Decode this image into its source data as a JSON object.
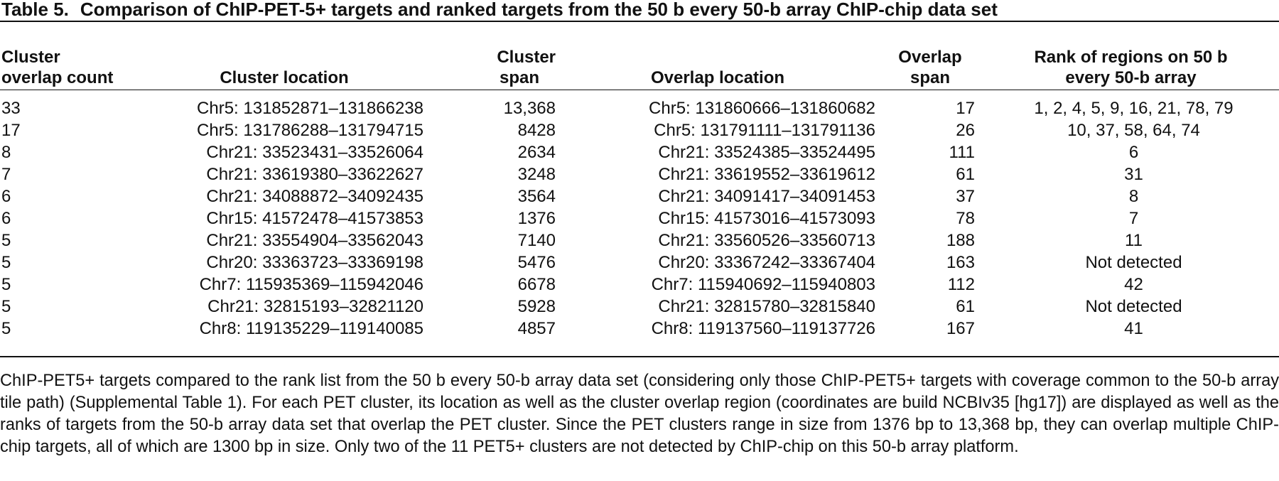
{
  "table": {
    "label": "Table 5.",
    "title": "Comparison of ChIP-PET-5+ targets and ranked targets from the 50 b every 50-b array ChIP-chip data set",
    "headers": {
      "overlap_count": [
        "Cluster",
        "overlap count"
      ],
      "cluster_location": "Cluster location",
      "cluster_span": [
        "Cluster",
        "span"
      ],
      "overlap_location": "Overlap location",
      "overlap_span": [
        "Overlap",
        "span"
      ],
      "rank": [
        "Rank of regions on 50 b",
        "every 50-b array"
      ]
    },
    "rows": [
      {
        "count": "33",
        "cluster_location": "Chr5: 131852871–131866238",
        "cluster_span": "13,368",
        "overlap_location": "Chr5: 131860666–131860682",
        "overlap_span": "17",
        "rank": "1, 2, 4, 5, 9, 16, 21, 78, 79"
      },
      {
        "count": "17",
        "cluster_location": "Chr5: 131786288–131794715",
        "cluster_span": "8428",
        "overlap_location": "Chr5: 131791111–131791136",
        "overlap_span": "26",
        "rank": "10, 37, 58, 64, 74"
      },
      {
        "count": "8",
        "cluster_location": "Chr21: 33523431–33526064",
        "cluster_span": "2634",
        "overlap_location": "Chr21: 33524385–33524495",
        "overlap_span": "111",
        "rank": "6"
      },
      {
        "count": "7",
        "cluster_location": "Chr21: 33619380–33622627",
        "cluster_span": "3248",
        "overlap_location": "Chr21: 33619552–33619612",
        "overlap_span": "61",
        "rank": "31"
      },
      {
        "count": "6",
        "cluster_location": "Chr21: 34088872–34092435",
        "cluster_span": "3564",
        "overlap_location": "Chr21: 34091417–34091453",
        "overlap_span": "37",
        "rank": "8"
      },
      {
        "count": "6",
        "cluster_location": "Chr15: 41572478–41573853",
        "cluster_span": "1376",
        "overlap_location": "Chr15: 41573016–41573093",
        "overlap_span": "78",
        "rank": "7"
      },
      {
        "count": "5",
        "cluster_location": "Chr21: 33554904–33562043",
        "cluster_span": "7140",
        "overlap_location": "Chr21: 33560526–33560713",
        "overlap_span": "188",
        "rank": "11"
      },
      {
        "count": "5",
        "cluster_location": "Chr20: 33363723–33369198",
        "cluster_span": "5476",
        "overlap_location": "Chr20: 33367242–33367404",
        "overlap_span": "163",
        "rank": "Not detected"
      },
      {
        "count": "5",
        "cluster_location": "Chr7: 115935369–115942046",
        "cluster_span": "6678",
        "overlap_location": "Chr7: 115940692–115940803",
        "overlap_span": "112",
        "rank": "42"
      },
      {
        "count": "5",
        "cluster_location": "Chr21: 32815193–32821120",
        "cluster_span": "5928",
        "overlap_location": "Chr21: 32815780–32815840",
        "overlap_span": "61",
        "rank": "Not detected"
      },
      {
        "count": "5",
        "cluster_location": "Chr8: 119135229–119140085",
        "cluster_span": "4857",
        "overlap_location": "Chr8: 119137560–119137726",
        "overlap_span": "167",
        "rank": "41"
      }
    ],
    "footnote": "ChIP-PET5+ targets compared to the rank list from the 50 b every 50-b array data set (considering only those ChIP-PET5+ targets with coverage common to the 50-b array tile path) (Supplemental Table 1). For each PET cluster, its location as well as the cluster overlap region (coordinates are build NCBIv35 [hg17]) are displayed as well as the ranks of targets from the 50-b array data set that overlap the PET cluster. Since the PET clusters range in size from 1376 bp to 13,368 bp, they can overlap multiple ChIP-chip targets, all of which are 1300 bp in size. Only two of the 11 PET5+ clusters are not detected by ChIP-chip on this 50-b array platform."
  }
}
